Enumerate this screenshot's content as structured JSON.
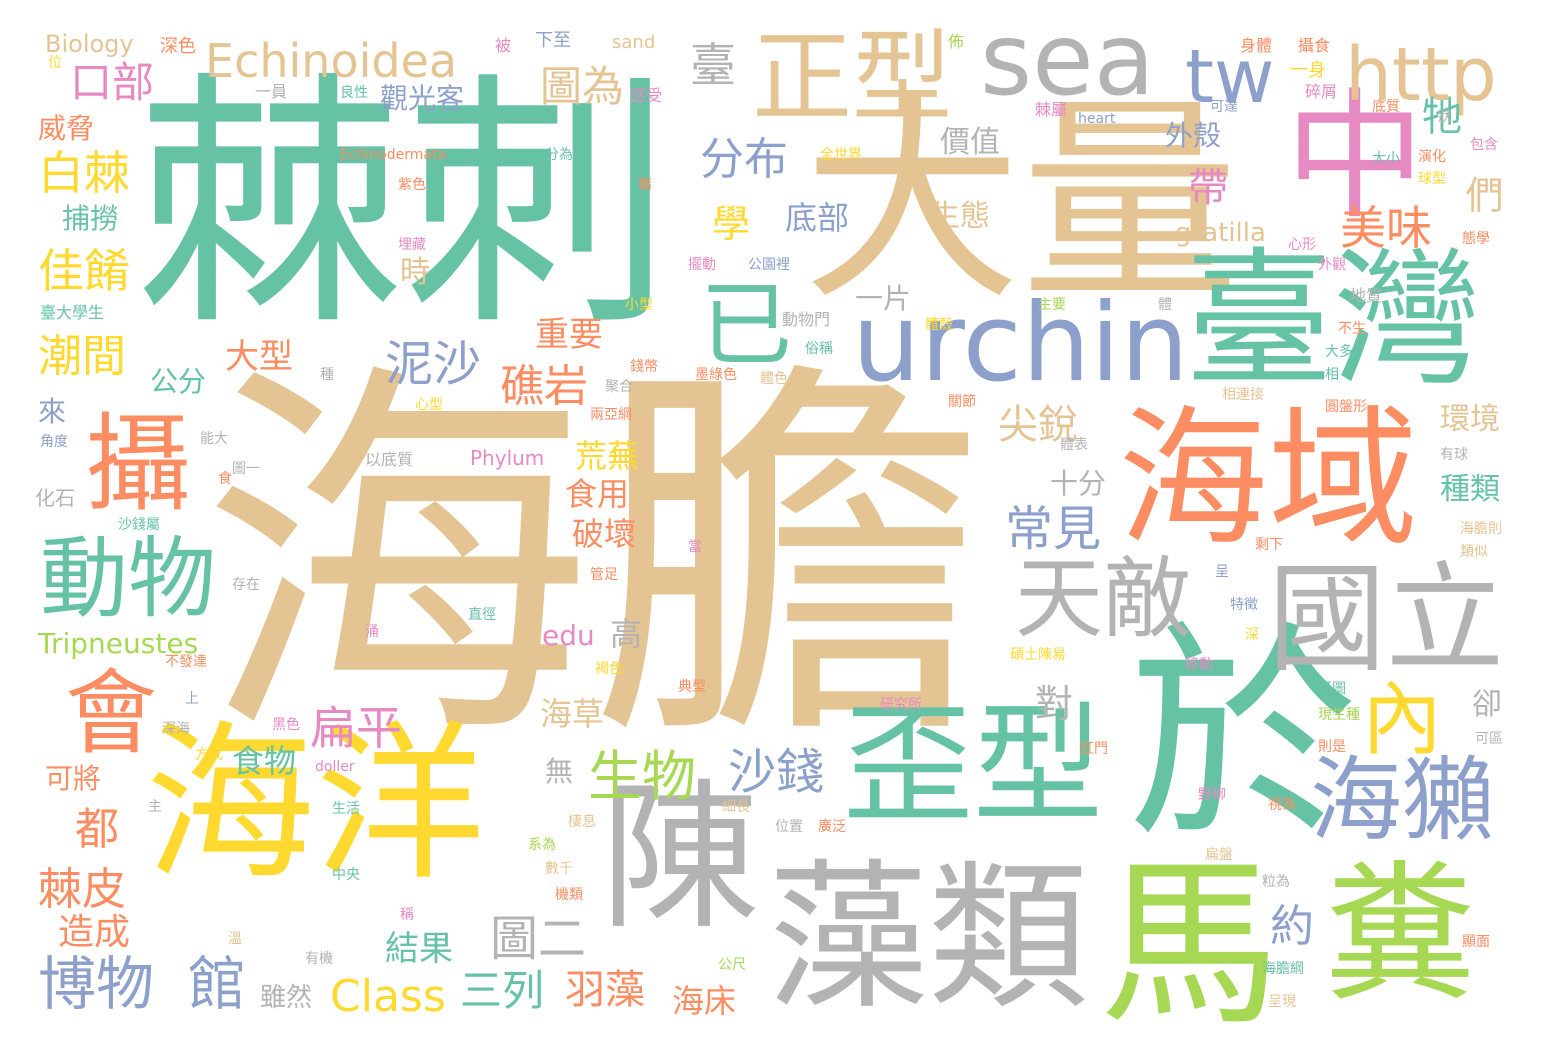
{
  "words": [
    {
      "id": "w0",
      "text": "海膽",
      "color": "tan"
    },
    {
      "id": "w1",
      "text": "棘刺",
      "color": "green"
    },
    {
      "id": "w2",
      "text": "大量",
      "color": "tan"
    },
    {
      "id": "w3",
      "text": "中",
      "color": "pink"
    },
    {
      "id": "w4",
      "text": "於",
      "color": "green"
    },
    {
      "id": "w5",
      "text": "海洋",
      "color": "yellow"
    },
    {
      "id": "w6",
      "text": "陳",
      "color": "gray"
    },
    {
      "id": "w7",
      "text": "藻類",
      "color": "gray"
    },
    {
      "id": "w8",
      "text": "馬",
      "color": "lime"
    },
    {
      "id": "w9",
      "text": "糞",
      "color": "lime"
    },
    {
      "id": "w10",
      "text": "臺灣",
      "color": "green"
    },
    {
      "id": "w11",
      "text": "海域",
      "color": "orange"
    },
    {
      "id": "w12",
      "text": "歪型",
      "color": "green"
    },
    {
      "id": "w13",
      "text": "國立",
      "color": "gray"
    },
    {
      "id": "w14",
      "text": "正型",
      "color": "tan"
    },
    {
      "id": "w15",
      "text": "sea",
      "color": "gray"
    },
    {
      "id": "w16",
      "text": "urchin",
      "color": "blue"
    },
    {
      "id": "w17",
      "text": "http",
      "color": "tan"
    },
    {
      "id": "w18",
      "text": "tw",
      "color": "blue"
    },
    {
      "id": "w19",
      "text": "攝",
      "color": "orange"
    },
    {
      "id": "w20",
      "text": "動物",
      "color": "green"
    },
    {
      "id": "w21",
      "text": "會",
      "color": "orange"
    },
    {
      "id": "w22",
      "text": "天敵",
      "color": "gray"
    },
    {
      "id": "w23",
      "text": "海獺",
      "color": "blue"
    },
    {
      "id": "w24",
      "text": "已",
      "color": "green"
    },
    {
      "id": "w25",
      "text": "內",
      "color": "yellow"
    },
    {
      "id": "w26",
      "text": "Echinoidea",
      "color": "tan"
    },
    {
      "id": "w27",
      "text": "口部",
      "color": "pink"
    },
    {
      "id": "w28",
      "text": "圖為",
      "color": "tan"
    },
    {
      "id": "w29",
      "text": "臺",
      "color": "gray"
    },
    {
      "id": "w30",
      "text": "分布",
      "color": "blue"
    },
    {
      "id": "w31",
      "text": "白棘",
      "color": "yellow"
    },
    {
      "id": "w32",
      "text": "佳餚",
      "color": "yellow"
    },
    {
      "id": "w33",
      "text": "潮間",
      "color": "yellow"
    },
    {
      "id": "w34",
      "text": "泥沙",
      "color": "blue"
    },
    {
      "id": "w35",
      "text": "礁岩",
      "color": "orange"
    },
    {
      "id": "w36",
      "text": "美味",
      "color": "orange"
    },
    {
      "id": "w37",
      "text": "生物",
      "color": "lime"
    },
    {
      "id": "w38",
      "text": "沙錢",
      "color": "blue"
    },
    {
      "id": "w39",
      "text": "扁平",
      "color": "pink"
    },
    {
      "id": "w40",
      "text": "尖銳",
      "color": "tan"
    },
    {
      "id": "w41",
      "text": "常見",
      "color": "blue"
    },
    {
      "id": "w42",
      "text": "博物",
      "color": "blue"
    },
    {
      "id": "w43",
      "text": "館",
      "color": "blue"
    },
    {
      "id": "w44",
      "text": "Class",
      "color": "yellow"
    },
    {
      "id": "w45",
      "text": "三列",
      "color": "green"
    },
    {
      "id": "w46",
      "text": "羽藻",
      "color": "orange"
    },
    {
      "id": "w47",
      "text": "棘皮",
      "color": "orange"
    },
    {
      "id": "w48",
      "text": "都",
      "color": "orange"
    },
    {
      "id": "w49",
      "text": "造成",
      "color": "orange"
    },
    {
      "id": "w50",
      "text": "圖二",
      "color": "gray"
    },
    {
      "id": "w51",
      "text": "約",
      "color": "blue"
    },
    {
      "id": "w52",
      "text": "結果",
      "color": "green"
    },
    {
      "id": "w53",
      "text": "海床",
      "color": "orange"
    },
    {
      "id": "w54",
      "text": "食物",
      "color": "green"
    },
    {
      "id": "w55",
      "text": "海草",
      "color": "tan"
    },
    {
      "id": "w56",
      "text": "Tripneustes",
      "color": "lime"
    },
    {
      "id": "w57",
      "text": "edu",
      "color": "pink"
    },
    {
      "id": "w58",
      "text": "高",
      "color": "gray"
    },
    {
      "id": "w59",
      "text": "荒蕪",
      "color": "yellow"
    },
    {
      "id": "w60",
      "text": "食用",
      "color": "orange"
    },
    {
      "id": "w61",
      "text": "破壞",
      "color": "orange"
    },
    {
      "id": "w62",
      "text": "重要",
      "color": "orange"
    },
    {
      "id": "w63",
      "text": "大型",
      "color": "orange"
    },
    {
      "id": "w64",
      "text": "公分",
      "color": "green"
    },
    {
      "id": "w65",
      "text": "學",
      "color": "yellow"
    },
    {
      "id": "w66",
      "text": "底部",
      "color": "blue"
    },
    {
      "id": "w67",
      "text": "生態",
      "color": "tan"
    },
    {
      "id": "w68",
      "text": "帶",
      "color": "pink"
    },
    {
      "id": "w69",
      "text": "牠",
      "color": "green"
    },
    {
      "id": "w70",
      "text": "們",
      "color": "tan"
    },
    {
      "id": "w71",
      "text": "外殼",
      "color": "blue"
    },
    {
      "id": "w72",
      "text": "價值",
      "color": "gray"
    },
    {
      "id": "w73",
      "text": "觀光客",
      "color": "blue"
    },
    {
      "id": "w74",
      "text": "威脅",
      "color": "orange"
    },
    {
      "id": "w75",
      "text": "捕撈",
      "color": "green"
    },
    {
      "id": "w76",
      "text": "gratilla",
      "color": "tan"
    },
    {
      "id": "w77",
      "text": "一片",
      "color": "gray"
    },
    {
      "id": "w78",
      "text": "時",
      "color": "tan"
    },
    {
      "id": "w79",
      "text": "環境",
      "color": "tan"
    },
    {
      "id": "w80",
      "text": "種類",
      "color": "green"
    },
    {
      "id": "w81",
      "text": "十分",
      "color": "gray"
    },
    {
      "id": "w82",
      "text": "對",
      "color": "gray"
    },
    {
      "id": "w83",
      "text": "無",
      "color": "gray"
    },
    {
      "id": "w84",
      "text": "可將",
      "color": "orange"
    },
    {
      "id": "w85",
      "text": "卻",
      "color": "gray"
    },
    {
      "id": "w86",
      "text": "雖然",
      "color": "gray"
    },
    {
      "id": "w87",
      "text": "來",
      "color": "blue"
    },
    {
      "id": "w88",
      "text": "化石",
      "color": "gray"
    },
    {
      "id": "w89",
      "text": "Biology",
      "color": "tan"
    },
    {
      "id": "w90",
      "text": "深色",
      "color": "orange"
    },
    {
      "id": "w91",
      "text": "被",
      "color": "pink"
    },
    {
      "id": "w92",
      "text": "下至",
      "color": "blue"
    },
    {
      "id": "w93",
      "text": "sand",
      "color": "tan"
    },
    {
      "id": "w94",
      "text": "佈",
      "color": "lime"
    },
    {
      "id": "w95",
      "text": "身體",
      "color": "orange"
    },
    {
      "id": "w96",
      "text": "攝食",
      "color": "orange"
    },
    {
      "id": "w97",
      "text": "位",
      "color": "yellow"
    },
    {
      "id": "w98",
      "text": "一員",
      "color": "gray"
    },
    {
      "id": "w99",
      "text": "良性",
      "color": "green"
    },
    {
      "id": "w100",
      "text": "感受",
      "color": "pink"
    },
    {
      "id": "w101",
      "text": "一身",
      "color": "yellow"
    },
    {
      "id": "w102",
      "text": "碎屑",
      "color": "pink"
    },
    {
      "id": "w103",
      "text": "棘屬",
      "color": "pink"
    },
    {
      "id": "w104",
      "text": "heart",
      "color": "blue"
    },
    {
      "id": "w105",
      "text": "可達",
      "color": "blue"
    },
    {
      "id": "w106",
      "text": "底質",
      "color": "orange"
    },
    {
      "id": "w107",
      "text": "狀",
      "color": "gray"
    },
    {
      "id": "w108",
      "text": "包含",
      "color": "pink"
    },
    {
      "id": "w109",
      "text": "Echinodermata",
      "color": "orange"
    },
    {
      "id": "w110",
      "text": "分為",
      "color": "green"
    },
    {
      "id": "w111",
      "text": "全世界",
      "color": "yellow"
    },
    {
      "id": "w112",
      "text": "大小",
      "color": "green"
    },
    {
      "id": "w113",
      "text": "演化",
      "color": "orange"
    },
    {
      "id": "w114",
      "text": "球型",
      "color": "yellow"
    },
    {
      "id": "w115",
      "text": "態學",
      "color": "orange"
    },
    {
      "id": "w116",
      "text": "紫色",
      "color": "orange"
    },
    {
      "id": "w117",
      "text": "豬",
      "color": "orange"
    },
    {
      "id": "w118",
      "text": "心形",
      "color": "pink"
    },
    {
      "id": "w119",
      "text": "外觀",
      "color": "pink"
    },
    {
      "id": "w120",
      "text": "埋藏",
      "color": "pink"
    },
    {
      "id": "w121",
      "text": "擺動",
      "color": "pink"
    },
    {
      "id": "w122",
      "text": "公園裡",
      "color": "blue"
    },
    {
      "id": "w123",
      "text": "小型",
      "color": "yellow"
    },
    {
      "id": "w124",
      "text": "臺大學生",
      "color": "green"
    },
    {
      "id": "w125",
      "text": "動物門",
      "color": "gray"
    },
    {
      "id": "w126",
      "text": "體殼",
      "color": "yellow"
    },
    {
      "id": "w127",
      "text": "主要",
      "color": "lime"
    },
    {
      "id": "w128",
      "text": "地質",
      "color": "gray"
    },
    {
      "id": "w129",
      "text": "體",
      "color": "gray"
    },
    {
      "id": "w130",
      "text": "不生",
      "color": "orange"
    },
    {
      "id": "w131",
      "text": "俗稱",
      "color": "green"
    },
    {
      "id": "w132",
      "text": "墨綠色",
      "color": "orange"
    },
    {
      "id": "w133",
      "text": "體色",
      "color": "tan"
    },
    {
      "id": "w134",
      "text": "大多",
      "color": "green"
    },
    {
      "id": "w135",
      "text": "相",
      "color": "green"
    },
    {
      "id": "w136",
      "text": "種",
      "color": "gray"
    },
    {
      "id": "w137",
      "text": "聚合",
      "color": "gray"
    },
    {
      "id": "w138",
      "text": "錢幣",
      "color": "orange"
    },
    {
      "id": "w139",
      "text": "心型",
      "color": "yellow"
    },
    {
      "id": "w140",
      "text": "兩亞綱",
      "color": "orange"
    },
    {
      "id": "w141",
      "text": "關節",
      "color": "orange"
    },
    {
      "id": "w142",
      "text": "相連接",
      "color": "tan"
    },
    {
      "id": "w143",
      "text": "圓盤形",
      "color": "orange"
    },
    {
      "id": "w144",
      "text": "角度",
      "color": "blue"
    },
    {
      "id": "w145",
      "text": "能大",
      "color": "gray"
    },
    {
      "id": "w146",
      "text": "以底質",
      "color": "gray"
    },
    {
      "id": "w147",
      "text": "Phylum",
      "color": "pink"
    },
    {
      "id": "w148",
      "text": "體表",
      "color": "gray"
    },
    {
      "id": "w149",
      "text": "有球",
      "color": "gray"
    },
    {
      "id": "w150",
      "text": "圖一",
      "color": "gray"
    },
    {
      "id": "w151",
      "text": "食",
      "color": "orange"
    },
    {
      "id": "w152",
      "text": "沙錢屬",
      "color": "green"
    },
    {
      "id": "w153",
      "text": "存在",
      "color": "gray"
    },
    {
      "id": "w154",
      "text": "管足",
      "color": "orange"
    },
    {
      "id": "w155",
      "text": "直徑",
      "color": "green"
    },
    {
      "id": "w156",
      "text": "當",
      "color": "pink"
    },
    {
      "id": "w157",
      "text": "呈",
      "color": "blue"
    },
    {
      "id": "w158",
      "text": "特徵",
      "color": "blue"
    },
    {
      "id": "w159",
      "text": "剩下",
      "color": "orange"
    },
    {
      "id": "w160",
      "text": "海膽則",
      "color": "tan"
    },
    {
      "id": "w161",
      "text": "類似",
      "color": "tan"
    },
    {
      "id": "w162",
      "text": "不發達",
      "color": "orange"
    },
    {
      "id": "w163",
      "text": "涌",
      "color": "pink"
    },
    {
      "id": "w164",
      "text": "深",
      "color": "yellow"
    },
    {
      "id": "w165",
      "text": "碩士陳易",
      "color": "yellow"
    },
    {
      "id": "w166",
      "text": "移動",
      "color": "pink"
    },
    {
      "id": "w167",
      "text": "褐色",
      "color": "yellow"
    },
    {
      "id": "w168",
      "text": "上",
      "color": "blue"
    },
    {
      "id": "w169",
      "text": "典型",
      "color": "orange"
    },
    {
      "id": "w170",
      "text": "研究所",
      "color": "pink"
    },
    {
      "id": "w171",
      "text": "攝圖",
      "color": "green"
    },
    {
      "id": "w172",
      "text": "現生種",
      "color": "lime"
    },
    {
      "id": "w173",
      "text": "深海",
      "color": "gray"
    },
    {
      "id": "w174",
      "text": "黑色",
      "color": "pink"
    },
    {
      "id": "w175",
      "text": "方式",
      "color": "yellow"
    },
    {
      "id": "w176",
      "text": "doller",
      "color": "pink"
    },
    {
      "id": "w177",
      "text": "肛門",
      "color": "orange"
    },
    {
      "id": "w178",
      "text": "則是",
      "color": "orange"
    },
    {
      "id": "w179",
      "text": "可區",
      "color": "gray"
    },
    {
      "id": "w180",
      "text": "主",
      "color": "gray"
    },
    {
      "id": "w181",
      "text": "生活",
      "color": "green"
    },
    {
      "id": "w182",
      "text": "細長",
      "color": "tan"
    },
    {
      "id": "w183",
      "text": "位置",
      "color": "gray"
    },
    {
      "id": "w184",
      "text": "廣泛",
      "color": "orange"
    },
    {
      "id": "w185",
      "text": "野柳",
      "color": "pink"
    },
    {
      "id": "w186",
      "text": "視為",
      "color": "orange"
    },
    {
      "id": "w187",
      "text": "棲息",
      "color": "tan"
    },
    {
      "id": "w188",
      "text": "系為",
      "color": "lime"
    },
    {
      "id": "w189",
      "text": "中央",
      "color": "green"
    },
    {
      "id": "w190",
      "text": "數千",
      "color": "tan"
    },
    {
      "id": "w191",
      "text": "機類",
      "color": "orange"
    },
    {
      "id": "w192",
      "text": "扁盤",
      "color": "tan"
    },
    {
      "id": "w193",
      "text": "粒為",
      "color": "gray"
    },
    {
      "id": "w194",
      "text": "稱",
      "color": "pink"
    },
    {
      "id": "w195",
      "text": "溫",
      "color": "tan"
    },
    {
      "id": "w196",
      "text": "有機",
      "color": "gray"
    },
    {
      "id": "w197",
      "text": "公尺",
      "color": "lime"
    },
    {
      "id": "w198",
      "text": "海膽綱",
      "color": "green"
    },
    {
      "id": "w199",
      "text": "顯面",
      "color": "orange"
    },
    {
      "id": "w200",
      "text": "呈現",
      "color": "tan"
    }
  ]
}
